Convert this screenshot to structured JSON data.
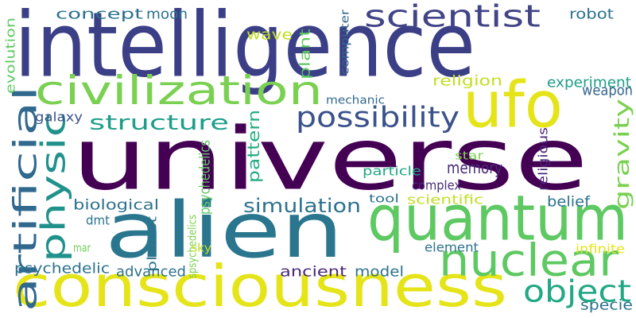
{
  "words": [
    {
      "text": "universe",
      "color": "#440154"
    },
    {
      "text": "intelligence",
      "color": "#3b3f86"
    },
    {
      "text": "alien",
      "color": "#2a768e"
    },
    {
      "text": "consciousness",
      "color": "#e5e419"
    },
    {
      "text": "quantum",
      "color": "#5ec962"
    },
    {
      "text": "ufo",
      "color": "#e5e419"
    },
    {
      "text": "civilization",
      "color": "#7ad151"
    },
    {
      "text": "artificial",
      "color": "#31688e"
    },
    {
      "text": "scientist",
      "color": "#414487"
    },
    {
      "text": "nuclear",
      "color": "#5ec962"
    },
    {
      "text": "physic",
      "color": "#21918c"
    },
    {
      "text": "possibility",
      "color": "#3b528b"
    },
    {
      "text": "structure",
      "color": "#1f9e89"
    },
    {
      "text": "object",
      "color": "#22a884"
    },
    {
      "text": "gravity",
      "color": "#7ad151"
    },
    {
      "text": "simulation",
      "color": "#2c728e"
    },
    {
      "text": "psychedelics",
      "color": "#5ec962"
    },
    {
      "text": "spsychedelics",
      "color": "#7ad151"
    },
    {
      "text": "pattern",
      "color": "#25ab82"
    },
    {
      "text": "memory",
      "color": "#482878"
    },
    {
      "text": "concept",
      "color": "#2c728e"
    },
    {
      "text": "moon",
      "color": "#2c728e"
    },
    {
      "text": "robot",
      "color": "#2c728e"
    },
    {
      "text": "wave",
      "color": "#c2df23"
    },
    {
      "text": "plant",
      "color": "#5ec962"
    },
    {
      "text": "computer",
      "color": "#33638d"
    },
    {
      "text": "evolution",
      "color": "#5ec962"
    },
    {
      "text": "religion",
      "color": "#c2df23"
    },
    {
      "text": "experiment",
      "color": "#1f9e89"
    },
    {
      "text": "weapon",
      "color": "#33638d"
    },
    {
      "text": "mechanic",
      "color": "#31688e"
    },
    {
      "text": "galaxy",
      "color": "#3b528b"
    },
    {
      "text": "religious",
      "color": "#482878"
    },
    {
      "text": "star",
      "color": "#7ad151"
    },
    {
      "text": "particle",
      "color": "#22a884"
    },
    {
      "text": "complex",
      "color": "#472c7a"
    },
    {
      "text": "biological",
      "color": "#2c728e"
    },
    {
      "text": "tool",
      "color": "#2c728e"
    },
    {
      "text": "scientific",
      "color": "#c2df23"
    },
    {
      "text": "belief",
      "color": "#2c728e"
    },
    {
      "text": "dmt",
      "color": "#2c728e"
    },
    {
      "text": "planet",
      "color": "#2c728e"
    },
    {
      "text": "mar",
      "color": "#6ece58"
    },
    {
      "text": "sky",
      "color": "#c2df23"
    },
    {
      "text": "element",
      "color": "#2c728e"
    },
    {
      "text": "infinite",
      "color": "#e5e419"
    },
    {
      "text": "psychedelic",
      "color": "#2c728e"
    },
    {
      "text": "advanced",
      "color": "#2c728e"
    },
    {
      "text": "ancient",
      "color": "#482878"
    },
    {
      "text": "model",
      "color": "#2c728e"
    },
    {
      "text": "specie",
      "color": "#2c728e"
    }
  ]
}
